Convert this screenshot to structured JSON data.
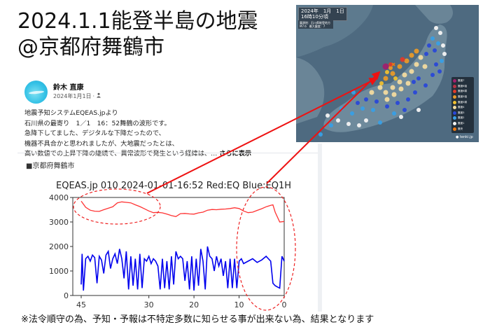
{
  "slide": {
    "title_line1": "2024.1.1能登半島の地震",
    "title_line2": "@京都府舞鶴市",
    "footnote": "※法令順守の為、予知・予報は不特定多数に知らせる事が出来ない為、結果となります"
  },
  "post": {
    "author": "鈴木 直康",
    "date": "2024年1月1日",
    "date_separator": "·",
    "audience_icon": "people-icon",
    "body_lines": [
      "地震予知システムEQEAS.jpより",
      "石川県の最寄り　1／1　16：52舞鶴の波形です。",
      "急降下してました、デジタルな下降だったので、",
      "機器不具合かと思われましたが、大地震だったとは、",
      "高い数値での上昇下降の継続で、異常波形で発生という経緯は、…"
    ],
    "see_more": "さらに表示",
    "section_label": "■京都府舞鶴市"
  },
  "map": {
    "date": "2024年　1月　1日",
    "time": "16時10分頃",
    "epicenter_line": "震源地：石川県能登地方",
    "magnitude_line": "M7.6　最大震度：7",
    "brand": "tenki.jp",
    "legend": [
      {
        "label": "震度7",
        "color": "#a0206e"
      },
      {
        "label": "震度6強",
        "color": "#b83246"
      },
      {
        "label": "震度6弱",
        "color": "#e03a2a"
      },
      {
        "label": "震度5強",
        "color": "#e79a2a"
      },
      {
        "label": "震度5弱",
        "color": "#f0c030"
      },
      {
        "label": "震度4",
        "color": "#f2dba0"
      },
      {
        "label": "震度3",
        "color": "#2a48d8"
      },
      {
        "label": "震度2",
        "color": "#38a0e6"
      },
      {
        "label": "震度1",
        "color": "#f4f4f4"
      },
      {
        "label": "震央",
        "color": "#f07a10"
      }
    ]
  },
  "chart_data": {
    "type": "line",
    "title": "EQEAS.jp 010 2024-01-01-16:52 Red:EQ Blue:EQ1H",
    "xlabel": "",
    "ylabel": "",
    "xlim": [
      45,
      0
    ],
    "ylim": [
      0,
      4000
    ],
    "x_ticks": [
      45,
      30,
      20,
      10,
      0
    ],
    "y_ticks": [
      0,
      1000,
      2000,
      3000,
      4000
    ],
    "x_tick_labels": [
      "45",
      "30",
      "20",
      "10",
      "0"
    ],
    "y_tick_labels": [
      "0",
      "1000",
      "2000",
      "3000",
      "4000"
    ],
    "grid": false,
    "series": [
      {
        "name": "Red:EQ",
        "color": "#ff3333",
        "x": [
          45,
          44,
          43,
          42,
          41,
          40,
          39,
          38,
          37,
          36,
          35,
          34,
          33,
          32,
          31,
          30,
          29,
          28,
          27,
          26,
          25,
          24,
          23,
          22,
          21,
          20,
          19,
          18,
          17,
          16,
          15,
          14,
          13,
          12,
          11,
          10,
          9,
          8,
          7,
          6,
          5,
          4,
          3,
          2.5,
          2,
          1,
          0
        ],
        "values": [
          3850,
          3600,
          3480,
          3440,
          3430,
          3500,
          3560,
          3620,
          3780,
          3820,
          3800,
          3780,
          3700,
          3630,
          3540,
          3450,
          3380,
          3390,
          3370,
          3320,
          3260,
          3220,
          3340,
          3350,
          3330,
          3320,
          3370,
          3400,
          3480,
          3510,
          3500,
          3520,
          3530,
          3550,
          3580,
          3550,
          3450,
          3380,
          3400,
          3470,
          3540,
          3620,
          3680,
          3700,
          3400,
          3000,
          3020
        ]
      },
      {
        "name": "Blue:EQ1H",
        "color": "#0000ee",
        "x": [
          45,
          44.8,
          44.5,
          44,
          43.5,
          43,
          42.5,
          42,
          41.5,
          41,
          40.5,
          40,
          39.5,
          39,
          38.5,
          38,
          37.5,
          37,
          36.5,
          36,
          35.5,
          35,
          34.5,
          34,
          33.5,
          33,
          32.5,
          32,
          31.5,
          31,
          30.5,
          30,
          29.5,
          29,
          28.5,
          28,
          27.5,
          27,
          26.5,
          26,
          25.5,
          25,
          24.5,
          24,
          23.5,
          23,
          22.5,
          22,
          21.5,
          21,
          20.5,
          20,
          19.5,
          19,
          18.5,
          18,
          17.5,
          17,
          16.5,
          16,
          15.5,
          15,
          14.5,
          14,
          13.5,
          13,
          12.5,
          12,
          11.5,
          11,
          10.5,
          10,
          9.5,
          9,
          8,
          7,
          6,
          5,
          4,
          3.5,
          3,
          2.5,
          2,
          1.5,
          1,
          0.5,
          0
        ],
        "values": [
          450,
          1700,
          200,
          1500,
          1600,
          1400,
          1650,
          1550,
          500,
          1600,
          1450,
          900,
          1650,
          1800,
          1100,
          1500,
          1700,
          1300,
          1900,
          1500,
          700,
          1800,
          250,
          1600,
          400,
          1500,
          250,
          1700,
          300,
          1500,
          1400,
          1600,
          1300,
          1500,
          1400,
          1200,
          250,
          1500,
          300,
          1400,
          250,
          1600,
          450,
          1800,
          1500,
          1600,
          1500,
          600,
          1400,
          250,
          1600,
          200,
          1500,
          400,
          1900,
          1400,
          250,
          2000,
          1600,
          1500,
          1000,
          1600,
          1200,
          1500,
          800,
          1400,
          300,
          1500,
          300,
          1500,
          300,
          1400,
          1500,
          1300,
          1400,
          1500,
          1350,
          1450,
          1600,
          1500,
          1400,
          500,
          400,
          350,
          300,
          1600,
          1400
        ]
      }
    ],
    "annotations": [
      "dashed red ellipse around early red peak (45–30)",
      "dashed red ellipse around final drop (≈8–0)",
      "red arrows from ellipses to epicenter on map"
    ]
  }
}
